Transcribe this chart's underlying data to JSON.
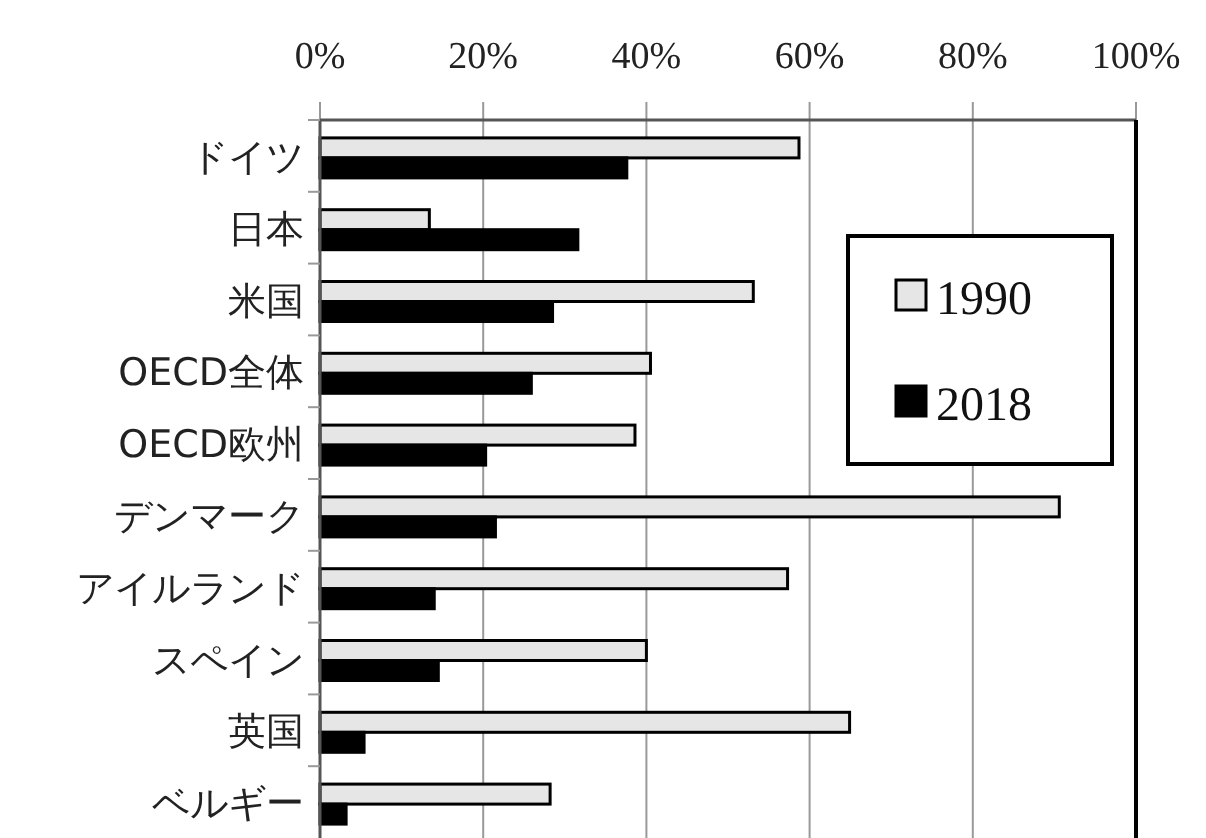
{
  "chart_data": {
    "type": "bar",
    "orientation": "horizontal",
    "categories": [
      "ドイツ",
      "日本",
      "米国",
      "OECD全体",
      "OECD欧州",
      "デンマーク",
      "アイルランド",
      "スペイン",
      "英国",
      "ベルギー"
    ],
    "series": [
      {
        "name": "1990",
        "color": "#e6e6e6",
        "values": [
          58.7,
          13.4,
          53.1,
          40.5,
          38.6,
          90.6,
          57.3,
          40.0,
          64.9,
          28.2
        ]
      },
      {
        "name": "2018",
        "color": "#000000",
        "values": [
          37.6,
          31.6,
          28.5,
          25.9,
          20.3,
          21.5,
          14.0,
          14.5,
          5.4,
          3.2
        ]
      }
    ],
    "xlim": [
      0,
      100
    ],
    "xticks": [
      {
        "value": 0,
        "label": "0%"
      },
      {
        "value": 20,
        "label": "20%"
      },
      {
        "value": 40,
        "label": "40%"
      },
      {
        "value": 60,
        "label": "60%"
      },
      {
        "value": 80,
        "label": "80%"
      },
      {
        "value": 100,
        "label": "100%"
      }
    ],
    "grid": "x",
    "legend": "right"
  }
}
